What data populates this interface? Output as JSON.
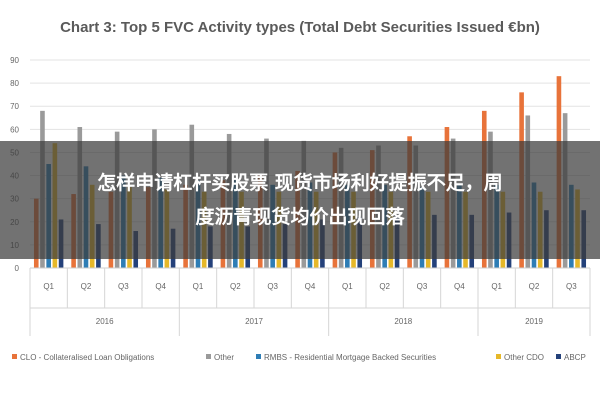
{
  "chart_data": {
    "type": "bar",
    "title": "Chart 3: Top 5 FVC Activity types (Total Debt Securities Issued €bn)",
    "ylim": [
      0,
      90
    ],
    "yticks": [
      0,
      10,
      20,
      30,
      40,
      50,
      60,
      70,
      80,
      90
    ],
    "categories": [
      "Q1",
      "Q2",
      "Q3",
      "Q4",
      "Q1",
      "Q2",
      "Q3",
      "Q4",
      "Q1",
      "Q2",
      "Q3",
      "Q4",
      "Q1",
      "Q2",
      "Q3"
    ],
    "years": [
      {
        "label": "2016",
        "count": 4
      },
      {
        "label": "2017",
        "count": 4
      },
      {
        "label": "2018",
        "count": 4
      },
      {
        "label": "2019",
        "count": 3
      }
    ],
    "series": [
      {
        "name": "CLO - Collateralised Loan Obligations",
        "color": "#e8733a",
        "values": [
          30,
          32,
          33,
          35,
          36,
          38,
          40,
          42,
          50,
          51,
          57,
          61,
          68,
          76,
          83
        ]
      },
      {
        "name": "Other",
        "color": "#9a9a9a",
        "values": [
          68,
          61,
          59,
          60,
          62,
          58,
          56,
          55,
          52,
          53,
          53,
          56,
          59,
          66,
          67
        ]
      },
      {
        "name": "RMBS - Residential Mortgage Backed Securities",
        "color": "#2e7db5",
        "values": [
          45,
          44,
          40,
          39,
          38,
          38,
          36,
          37,
          36,
          36,
          35,
          36,
          36,
          37,
          36
        ]
      },
      {
        "name": "Other CDO",
        "color": "#e6b829",
        "values": [
          54,
          36,
          35,
          34,
          33,
          33,
          33,
          33,
          33,
          33,
          33,
          33,
          33,
          33,
          34
        ]
      },
      {
        "name": "ABCP",
        "color": "#24417a",
        "values": [
          21,
          19,
          16,
          17,
          18,
          18,
          19,
          21,
          22,
          23,
          23,
          23,
          24,
          25,
          25
        ]
      }
    ]
  },
  "overlay": {
    "line1": "怎样申请杠杆买股票 现货市场利好提振不足，周",
    "line2": "度沥青现货均价出现回落"
  }
}
